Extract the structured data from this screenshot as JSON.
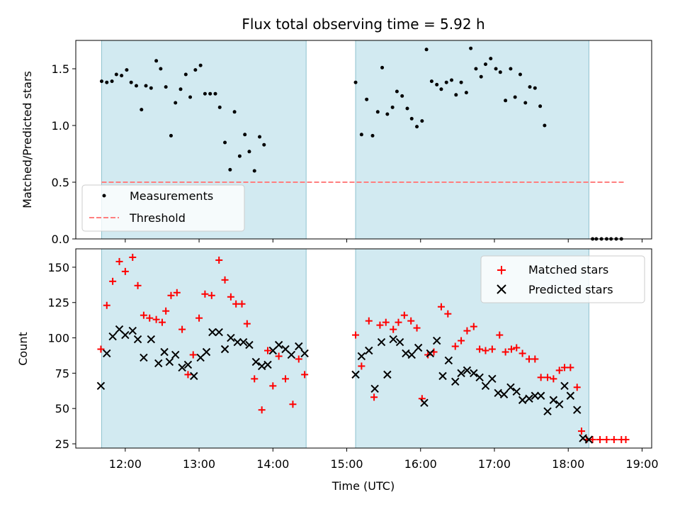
{
  "chart_data": [
    {
      "type": "scatter",
      "title": "Flux total observing time = 5.92 h",
      "xlabel": "",
      "ylabel": "Matched/Predicted stars",
      "ylim": [
        0,
        1.75
      ],
      "yticks": [
        0.0,
        0.5,
        1.0,
        1.5
      ],
      "ytick_labels": [
        "0.0",
        "0.5",
        "1.0",
        "1.5"
      ],
      "x_unit": "decimal hours (UTC)",
      "xlim": [
        11.33,
        19.13
      ],
      "grid": false,
      "legend_position": "lower-left",
      "shaded_intervals": [
        [
          11.68,
          14.45
        ],
        [
          15.12,
          18.28
        ]
      ],
      "shade_color": "#add8e6",
      "threshold": {
        "name": "Threshold",
        "value": 0.5,
        "x_range": [
          11.68,
          18.78
        ],
        "color": "#ff7f7f",
        "style": "dashed"
      },
      "series": [
        {
          "name": "Measurements",
          "color": "#000000",
          "marker": "dot",
          "points": [
            [
              11.68,
              1.39
            ],
            [
              11.75,
              1.38
            ],
            [
              11.82,
              1.39
            ],
            [
              11.88,
              1.45
            ],
            [
              11.95,
              1.44
            ],
            [
              12.02,
              1.49
            ],
            [
              12.08,
              1.38
            ],
            [
              12.15,
              1.35
            ],
            [
              12.22,
              1.14
            ],
            [
              12.28,
              1.35
            ],
            [
              12.35,
              1.33
            ],
            [
              12.42,
              1.57
            ],
            [
              12.48,
              1.5
            ],
            [
              12.55,
              1.34
            ],
            [
              12.62,
              0.91
            ],
            [
              12.68,
              1.2
            ],
            [
              12.75,
              1.32
            ],
            [
              12.82,
              1.45
            ],
            [
              12.88,
              1.25
            ],
            [
              12.95,
              1.49
            ],
            [
              13.02,
              1.53
            ],
            [
              13.08,
              1.28
            ],
            [
              13.15,
              1.28
            ],
            [
              13.22,
              1.28
            ],
            [
              13.28,
              1.16
            ],
            [
              13.35,
              0.85
            ],
            [
              13.42,
              0.61
            ],
            [
              13.48,
              1.12
            ],
            [
              13.55,
              0.73
            ],
            [
              13.62,
              0.92
            ],
            [
              13.68,
              0.77
            ],
            [
              13.75,
              0.6
            ],
            [
              13.82,
              0.9
            ],
            [
              13.88,
              0.83
            ],
            [
              15.12,
              1.38
            ],
            [
              15.2,
              0.92
            ],
            [
              15.27,
              1.23
            ],
            [
              15.35,
              0.91
            ],
            [
              15.42,
              1.12
            ],
            [
              15.48,
              1.51
            ],
            [
              15.55,
              1.1
            ],
            [
              15.62,
              1.16
            ],
            [
              15.68,
              1.3
            ],
            [
              15.75,
              1.26
            ],
            [
              15.82,
              1.15
            ],
            [
              15.88,
              1.06
            ],
            [
              15.95,
              0.99
            ],
            [
              16.02,
              1.04
            ],
            [
              16.08,
              1.67
            ],
            [
              16.15,
              1.39
            ],
            [
              16.22,
              1.36
            ],
            [
              16.28,
              1.32
            ],
            [
              16.35,
              1.38
            ],
            [
              16.42,
              1.4
            ],
            [
              16.48,
              1.27
            ],
            [
              16.55,
              1.38
            ],
            [
              16.62,
              1.29
            ],
            [
              16.68,
              1.68
            ],
            [
              16.75,
              1.5
            ],
            [
              16.82,
              1.43
            ],
            [
              16.88,
              1.54
            ],
            [
              16.95,
              1.59
            ],
            [
              17.02,
              1.5
            ],
            [
              17.08,
              1.47
            ],
            [
              17.15,
              1.22
            ],
            [
              17.22,
              1.5
            ],
            [
              17.28,
              1.25
            ],
            [
              17.35,
              1.45
            ],
            [
              17.42,
              1.2
            ],
            [
              17.48,
              1.34
            ],
            [
              17.55,
              1.33
            ],
            [
              17.62,
              1.17
            ],
            [
              17.68,
              1.0
            ],
            [
              18.33,
              0.0
            ],
            [
              18.38,
              0.0
            ],
            [
              18.45,
              0.0
            ],
            [
              18.52,
              0.0
            ],
            [
              18.58,
              0.0
            ],
            [
              18.65,
              0.0
            ],
            [
              18.72,
              0.0
            ]
          ]
        }
      ]
    },
    {
      "type": "scatter",
      "title": "",
      "xlabel": "Time (UTC)",
      "ylabel": "Count",
      "ylim": [
        22,
        163
      ],
      "yticks": [
        25,
        50,
        75,
        100,
        125,
        150
      ],
      "ytick_labels": [
        "25",
        "50",
        "75",
        "100",
        "125",
        "150"
      ],
      "x_unit": "decimal hours (UTC)",
      "xlim": [
        11.33,
        19.13
      ],
      "xticks": [
        12,
        13,
        14,
        15,
        16,
        17,
        18,
        19
      ],
      "xtick_labels": [
        "12:00",
        "13:00",
        "14:00",
        "15:00",
        "16:00",
        "17:00",
        "18:00",
        "19:00"
      ],
      "grid": false,
      "legend_position": "upper-right",
      "shaded_intervals": [
        [
          11.68,
          14.45
        ],
        [
          15.12,
          18.28
        ]
      ],
      "shade_color": "#add8e6",
      "series": [
        {
          "name": "Matched stars",
          "color": "#ff0000",
          "marker": "plus",
          "points": [
            [
              11.67,
              92
            ],
            [
              11.75,
              123
            ],
            [
              11.83,
              140
            ],
            [
              11.92,
              154
            ],
            [
              12.0,
              147
            ],
            [
              12.1,
              157
            ],
            [
              12.17,
              137
            ],
            [
              12.25,
              116
            ],
            [
              12.33,
              114
            ],
            [
              12.42,
              113
            ],
            [
              12.5,
              111
            ],
            [
              12.55,
              119
            ],
            [
              12.62,
              130
            ],
            [
              12.7,
              132
            ],
            [
              12.77,
              106
            ],
            [
              12.85,
              74
            ],
            [
              12.92,
              88
            ],
            [
              13.0,
              114
            ],
            [
              13.08,
              131
            ],
            [
              13.17,
              130
            ],
            [
              13.27,
              155
            ],
            [
              13.35,
              141
            ],
            [
              13.43,
              129
            ],
            [
              13.5,
              124
            ],
            [
              13.58,
              124
            ],
            [
              13.65,
              110
            ],
            [
              13.75,
              71
            ],
            [
              13.85,
              49
            ],
            [
              13.93,
              91
            ],
            [
              14.0,
              66
            ],
            [
              14.08,
              87
            ],
            [
              14.17,
              71
            ],
            [
              14.27,
              53
            ],
            [
              14.35,
              85
            ],
            [
              14.43,
              74
            ],
            [
              15.12,
              102
            ],
            [
              15.2,
              80
            ],
            [
              15.3,
              112
            ],
            [
              15.37,
              58
            ],
            [
              15.45,
              109
            ],
            [
              15.53,
              111
            ],
            [
              15.63,
              106
            ],
            [
              15.7,
              111
            ],
            [
              15.78,
              116
            ],
            [
              15.87,
              112
            ],
            [
              15.95,
              107
            ],
            [
              16.02,
              57
            ],
            [
              16.1,
              88
            ],
            [
              16.18,
              90
            ],
            [
              16.28,
              122
            ],
            [
              16.37,
              117
            ],
            [
              16.47,
              94
            ],
            [
              16.55,
              98
            ],
            [
              16.63,
              105
            ],
            [
              16.72,
              108
            ],
            [
              16.8,
              92
            ],
            [
              16.88,
              91
            ],
            [
              16.97,
              92
            ],
            [
              17.07,
              102
            ],
            [
              17.15,
              90
            ],
            [
              17.23,
              92
            ],
            [
              17.3,
              93
            ],
            [
              17.38,
              89
            ],
            [
              17.47,
              85
            ],
            [
              17.55,
              85
            ],
            [
              17.63,
              72
            ],
            [
              17.72,
              72
            ],
            [
              17.8,
              71
            ],
            [
              17.88,
              77
            ],
            [
              17.95,
              79
            ],
            [
              18.03,
              79
            ],
            [
              18.12,
              65
            ],
            [
              18.18,
              34
            ],
            [
              18.25,
              28
            ],
            [
              18.33,
              28
            ],
            [
              18.43,
              28
            ],
            [
              18.52,
              28
            ],
            [
              18.62,
              28
            ],
            [
              18.72,
              28
            ],
            [
              18.78,
              28
            ]
          ]
        },
        {
          "name": "Predicted stars",
          "color": "#000000",
          "marker": "x",
          "points": [
            [
              11.67,
              66
            ],
            [
              11.75,
              89
            ],
            [
              11.83,
              101
            ],
            [
              11.92,
              106
            ],
            [
              12.0,
              102
            ],
            [
              12.1,
              105
            ],
            [
              12.17,
              99
            ],
            [
              12.25,
              86
            ],
            [
              12.35,
              99
            ],
            [
              12.45,
              82
            ],
            [
              12.53,
              90
            ],
            [
              12.6,
              83
            ],
            [
              12.68,
              88
            ],
            [
              12.77,
              79
            ],
            [
              12.85,
              81
            ],
            [
              12.93,
              73
            ],
            [
              13.02,
              86
            ],
            [
              13.1,
              90
            ],
            [
              13.18,
              104
            ],
            [
              13.27,
              104
            ],
            [
              13.35,
              92
            ],
            [
              13.43,
              100
            ],
            [
              13.52,
              97
            ],
            [
              13.6,
              97
            ],
            [
              13.68,
              95
            ],
            [
              13.77,
              83
            ],
            [
              13.85,
              80
            ],
            [
              13.93,
              81
            ],
            [
              14.0,
              91
            ],
            [
              14.08,
              95
            ],
            [
              14.17,
              92
            ],
            [
              14.25,
              88
            ],
            [
              14.35,
              94
            ],
            [
              14.43,
              89
            ],
            [
              15.12,
              74
            ],
            [
              15.2,
              87
            ],
            [
              15.3,
              91
            ],
            [
              15.38,
              64
            ],
            [
              15.47,
              97
            ],
            [
              15.55,
              74
            ],
            [
              15.63,
              99
            ],
            [
              15.72,
              97
            ],
            [
              15.8,
              89
            ],
            [
              15.88,
              88
            ],
            [
              15.97,
              93
            ],
            [
              16.05,
              54
            ],
            [
              16.13,
              89
            ],
            [
              16.22,
              98
            ],
            [
              16.3,
              73
            ],
            [
              16.38,
              84
            ],
            [
              16.47,
              69
            ],
            [
              16.55,
              75
            ],
            [
              16.63,
              77
            ],
            [
              16.72,
              75
            ],
            [
              16.8,
              72
            ],
            [
              16.88,
              66
            ],
            [
              16.97,
              71
            ],
            [
              17.05,
              61
            ],
            [
              17.13,
              60
            ],
            [
              17.22,
              65
            ],
            [
              17.3,
              62
            ],
            [
              17.38,
              56
            ],
            [
              17.47,
              57
            ],
            [
              17.55,
              59
            ],
            [
              17.63,
              59
            ],
            [
              17.72,
              48
            ],
            [
              17.8,
              56
            ],
            [
              17.88,
              53
            ],
            [
              17.95,
              66
            ],
            [
              18.03,
              59
            ],
            [
              18.12,
              49
            ],
            [
              18.2,
              29
            ],
            [
              18.28,
              28
            ]
          ]
        }
      ]
    }
  ]
}
